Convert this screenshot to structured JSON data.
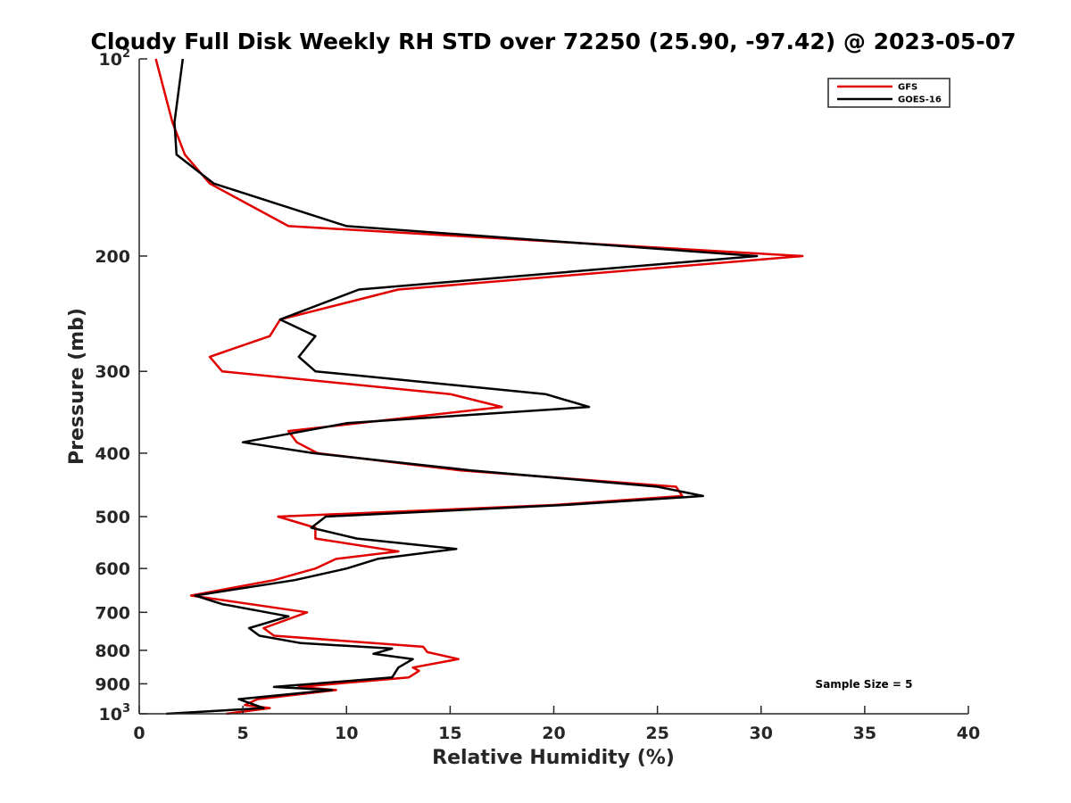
{
  "chart_data": {
    "type": "line",
    "title": "Cloudy Full Disk Weekly RH STD over 72250 (25.90, -97.42) @ 2023-05-07",
    "xlabel": "Relative Humidity (%)",
    "ylabel": "Pressure (mb)",
    "xlim": [
      0,
      40
    ],
    "ylim": [
      100,
      1000
    ],
    "yscale": "log",
    "y_reversed": true,
    "grid": false,
    "legend_position": "top-right",
    "x_ticks": [
      {
        "value": 0,
        "label": "0"
      },
      {
        "value": 5,
        "label": "5"
      },
      {
        "value": 10,
        "label": "10"
      },
      {
        "value": 15,
        "label": "15"
      },
      {
        "value": 20,
        "label": "20"
      },
      {
        "value": 25,
        "label": "25"
      },
      {
        "value": 30,
        "label": "30"
      },
      {
        "value": 35,
        "label": "35"
      },
      {
        "value": 40,
        "label": "40"
      }
    ],
    "y_ticks": [
      {
        "value": 100,
        "base": "10",
        "exp": "2"
      },
      {
        "value": 200,
        "base": "200",
        "exp": ""
      },
      {
        "value": 300,
        "base": "300",
        "exp": ""
      },
      {
        "value": 400,
        "base": "400",
        "exp": ""
      },
      {
        "value": 500,
        "base": "500",
        "exp": ""
      },
      {
        "value": 600,
        "base": "600",
        "exp": ""
      },
      {
        "value": 700,
        "base": "700",
        "exp": ""
      },
      {
        "value": 800,
        "base": "800",
        "exp": ""
      },
      {
        "value": 900,
        "base": "900",
        "exp": ""
      },
      {
        "value": 1000,
        "base": "10",
        "exp": "3"
      }
    ],
    "annotation": "Sample Size = 5",
    "series": [
      {
        "name": "GFS",
        "color": "#e00000",
        "points": [
          [
            0.8,
            100
          ],
          [
            1.6,
            125
          ],
          [
            2.2,
            140
          ],
          [
            3.4,
            155
          ],
          [
            7.2,
            180
          ],
          [
            32.0,
            200
          ],
          [
            12.5,
            225
          ],
          [
            6.8,
            250
          ],
          [
            6.3,
            265
          ],
          [
            3.4,
            285
          ],
          [
            4.0,
            300
          ],
          [
            15.0,
            325
          ],
          [
            17.5,
            340
          ],
          [
            7.2,
            370
          ],
          [
            7.6,
            385
          ],
          [
            8.6,
            400
          ],
          [
            15.5,
            425
          ],
          [
            25.9,
            450
          ],
          [
            26.2,
            465
          ],
          [
            20.0,
            480
          ],
          [
            6.7,
            500
          ],
          [
            8.5,
            520
          ],
          [
            8.5,
            540
          ],
          [
            12.5,
            565
          ],
          [
            9.5,
            580
          ],
          [
            8.5,
            600
          ],
          [
            6.5,
            625
          ],
          [
            2.5,
            660
          ],
          [
            8.1,
            700
          ],
          [
            6.0,
            740
          ],
          [
            6.5,
            760
          ],
          [
            13.7,
            790
          ],
          [
            13.9,
            805
          ],
          [
            15.4,
            825
          ],
          [
            13.2,
            850
          ],
          [
            13.5,
            860
          ],
          [
            13.0,
            880
          ],
          [
            7.7,
            910
          ],
          [
            9.5,
            920
          ],
          [
            5.7,
            950
          ],
          [
            5.1,
            970
          ],
          [
            6.3,
            980
          ],
          [
            4.2,
            1000
          ]
        ]
      },
      {
        "name": "GOES-16",
        "color": "#000000",
        "points": [
          [
            2.1,
            100
          ],
          [
            1.7,
            125
          ],
          [
            1.8,
            140
          ],
          [
            3.6,
            155
          ],
          [
            10.0,
            180
          ],
          [
            29.8,
            200
          ],
          [
            10.6,
            225
          ],
          [
            6.8,
            250
          ],
          [
            8.5,
            265
          ],
          [
            7.7,
            285
          ],
          [
            8.5,
            300
          ],
          [
            19.6,
            325
          ],
          [
            21.7,
            340
          ],
          [
            10.0,
            360
          ],
          [
            5.0,
            385
          ],
          [
            8.4,
            400
          ],
          [
            16.0,
            425
          ],
          [
            25.0,
            450
          ],
          [
            27.2,
            465
          ],
          [
            20.5,
            480
          ],
          [
            9.0,
            500
          ],
          [
            8.3,
            520
          ],
          [
            10.5,
            540
          ],
          [
            15.3,
            560
          ],
          [
            11.5,
            580
          ],
          [
            10.0,
            600
          ],
          [
            7.5,
            625
          ],
          [
            2.7,
            660
          ],
          [
            4.0,
            680
          ],
          [
            7.2,
            710
          ],
          [
            5.3,
            740
          ],
          [
            5.8,
            760
          ],
          [
            7.8,
            780
          ],
          [
            12.2,
            795
          ],
          [
            11.3,
            810
          ],
          [
            13.2,
            825
          ],
          [
            12.5,
            850
          ],
          [
            12.2,
            880
          ],
          [
            6.5,
            910
          ],
          [
            9.3,
            920
          ],
          [
            4.8,
            950
          ],
          [
            5.6,
            970
          ],
          [
            6.0,
            980
          ],
          [
            1.3,
            1000
          ]
        ]
      }
    ]
  }
}
